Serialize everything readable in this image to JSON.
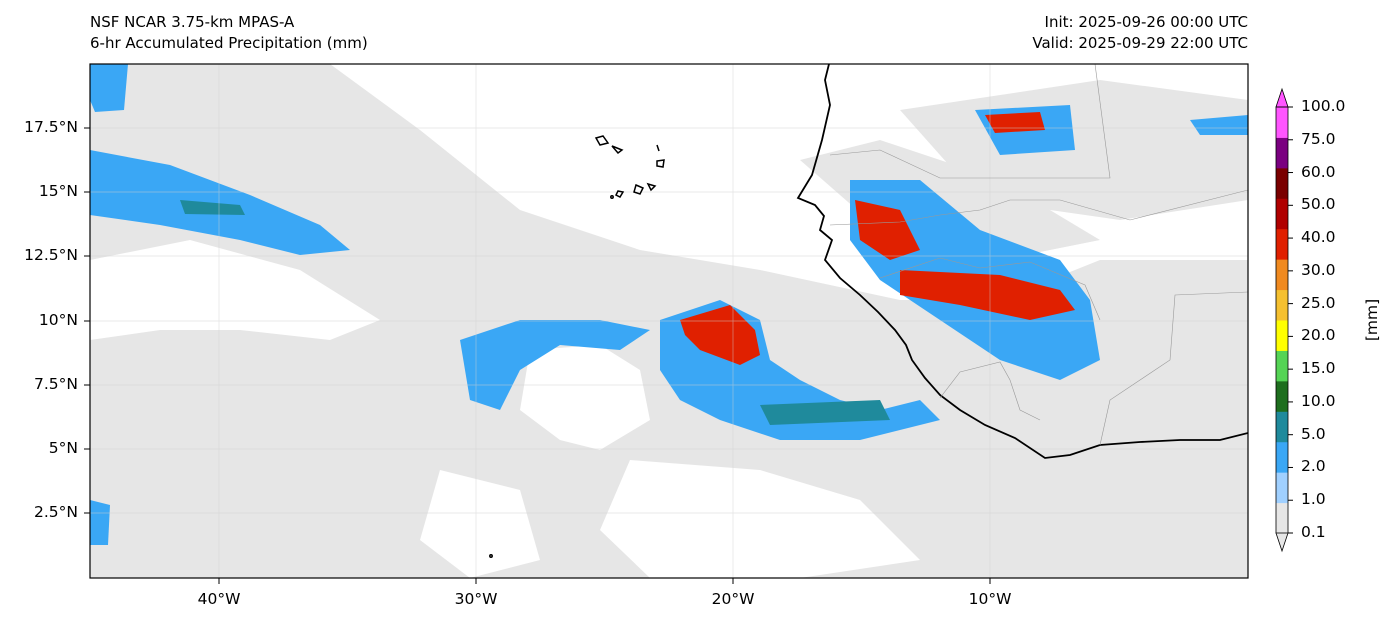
{
  "header": {
    "model": "NSF NCAR 3.75-km MPAS-A",
    "field": "6-hr Accumulated Precipitation (mm)",
    "init": "Init: 2025-09-26 00:00 UTC",
    "valid": "Valid: 2025-09-29 22:00 UTC"
  },
  "map": {
    "lon_labels": [
      "40°W",
      "30°W",
      "20°W",
      "10°W"
    ],
    "lat_labels": [
      "17.5°N",
      "15°N",
      "12.5°N",
      "10°N",
      "7.5°N",
      "5°N",
      "2.5°N"
    ],
    "gridlines": true,
    "background_color": "#ffffff",
    "land_outline_color": "#000000"
  },
  "colorbar": {
    "unit": "[mm]",
    "levels": [
      "0.1",
      "1.0",
      "2.0",
      "5.0",
      "10.0",
      "15.0",
      "20.0",
      "25.0",
      "30.0",
      "40.0",
      "50.0",
      "60.0",
      "75.0",
      "100.0"
    ],
    "colors": [
      "#e6e6e6",
      "#a0d0ff",
      "#3aa7f5",
      "#1f8a9c",
      "#1e6e1e",
      "#55d455",
      "#ffff00",
      "#f5c030",
      "#f08a20",
      "#e02000",
      "#b00000",
      "#7a0000",
      "#7a0080",
      "#ff55ff"
    ]
  }
}
